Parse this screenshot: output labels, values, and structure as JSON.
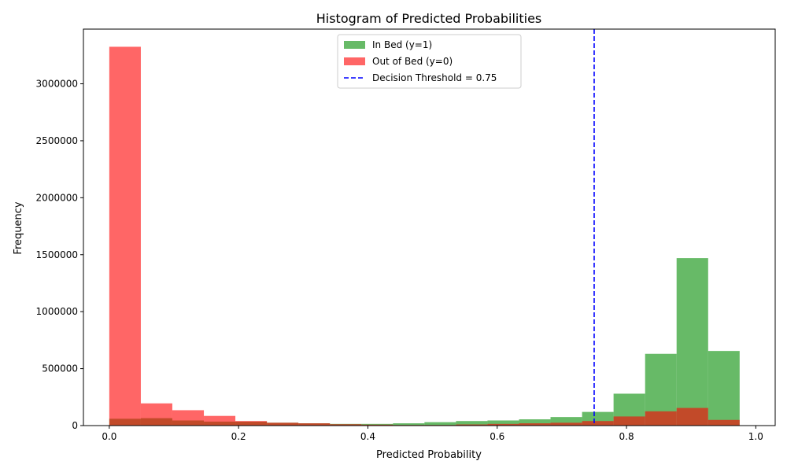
{
  "chart_data": {
    "type": "bar",
    "title": "Histogram of Predicted Probabilities",
    "xlabel": "Predicted Probability",
    "ylabel": "Frequency",
    "xlim": [
      -0.04,
      1.03
    ],
    "ylim": [
      0,
      3480000
    ],
    "x_ticks": [
      0.0,
      0.2,
      0.4,
      0.6,
      0.8,
      1.0
    ],
    "x_tick_labels": [
      "0.0",
      "0.2",
      "0.4",
      "0.6",
      "0.8",
      "1.0"
    ],
    "y_ticks": [
      0,
      500000,
      1000000,
      1500000,
      2000000,
      2500000,
      3000000
    ],
    "y_tick_labels": [
      "0",
      "500000",
      "1000000",
      "1500000",
      "2000000",
      "2500000",
      "3000000"
    ],
    "bin_edges": [
      0.0,
      0.0488,
      0.0975,
      0.1463,
      0.195,
      0.2438,
      0.2925,
      0.3413,
      0.39,
      0.4388,
      0.4875,
      0.5363,
      0.585,
      0.6338,
      0.6825,
      0.7313,
      0.78,
      0.8288,
      0.8775,
      0.9263,
      0.975
    ],
    "legend_position": "top-center",
    "grid": false,
    "series": [
      {
        "name": "In Bed (y=1)",
        "color": "#2ca02c",
        "opacity": 0.72,
        "values": [
          60000,
          65000,
          45000,
          35000,
          35000,
          25000,
          20000,
          15000,
          15000,
          20000,
          30000,
          40000,
          45000,
          55000,
          75000,
          120000,
          280000,
          630000,
          1470000,
          655000,
          140000
        ]
      },
      {
        "name": "Out of Bed (y=0)",
        "color": "#ff0000",
        "opacity": 0.6,
        "values": [
          3325000,
          195000,
          135000,
          85000,
          40000,
          25000,
          20000,
          12000,
          8000,
          5000,
          5000,
          10000,
          15000,
          20000,
          25000,
          40000,
          80000,
          125000,
          155000,
          50000,
          5000
        ]
      }
    ],
    "threshold": {
      "value": 0.75,
      "label": "Decision Threshold = 0.75",
      "color": "#0000ff"
    }
  }
}
